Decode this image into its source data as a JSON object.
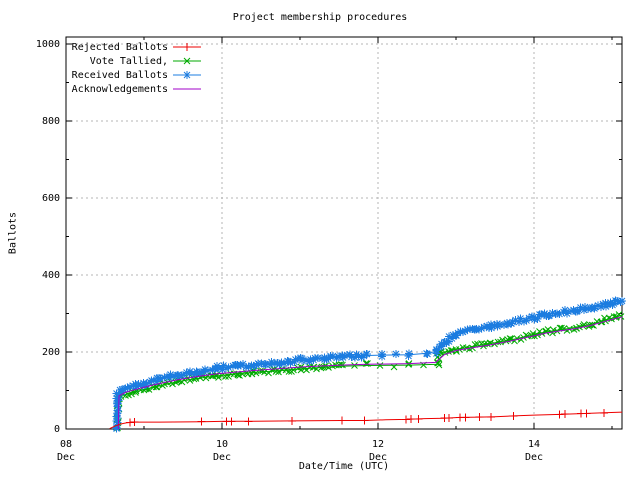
{
  "chart_data": {
    "type": "line",
    "title": "Project membership procedures",
    "xlabel": "Date/Time (UTC)",
    "ylabel": "Ballots",
    "x_unit_days_since": "Dec 08 00:00 UTC",
    "xlim_days": [
      0,
      7.13
    ],
    "ylim": [
      0,
      1017
    ],
    "grid": true,
    "legend_position": "top-left",
    "grid_color": "#b4b4b4",
    "frame_color": "#000000",
    "x_ticks": [
      {
        "day": 0,
        "top": "08",
        "bottom": "Dec"
      },
      {
        "day": 2,
        "top": "10",
        "bottom": "Dec"
      },
      {
        "day": 4,
        "top": "12",
        "bottom": "Dec"
      },
      {
        "day": 6,
        "top": "14",
        "bottom": "Dec"
      }
    ],
    "x_minor_days": [
      1,
      3,
      5,
      7
    ],
    "y_ticks": [
      0,
      200,
      400,
      600,
      800,
      1000
    ],
    "y_minor": [
      100,
      300,
      500,
      700,
      900
    ],
    "series": [
      {
        "name": "Vote Tallied,",
        "color": "#00aa00",
        "marker": "cross",
        "marker_step": 3,
        "jitter": 2.0,
        "sparse": {
          "from": 3.6,
          "to": 4.76,
          "step": 13
        },
        "points": [
          [
            0.66,
            0
          ],
          [
            0.67,
            78
          ],
          [
            0.72,
            88
          ],
          [
            0.9,
            97
          ],
          [
            1.03,
            104
          ],
          [
            1.16,
            110
          ],
          [
            1.41,
            122
          ],
          [
            1.67,
            131
          ],
          [
            1.93,
            138
          ],
          [
            2.19,
            143
          ],
          [
            2.41,
            147
          ],
          [
            2.7,
            151
          ],
          [
            3.01,
            156
          ],
          [
            3.3,
            160
          ],
          [
            3.53,
            163
          ],
          [
            3.86,
            165
          ],
          [
            4.4,
            166
          ],
          [
            4.77,
            168
          ],
          [
            4.78,
            196
          ],
          [
            5.0,
            207
          ],
          [
            5.24,
            215
          ],
          [
            5.45,
            222
          ],
          [
            5.71,
            232
          ],
          [
            6.0,
            245
          ],
          [
            6.15,
            252
          ],
          [
            6.34,
            258
          ],
          [
            6.54,
            264
          ],
          [
            6.73,
            272
          ],
          [
            6.92,
            283
          ],
          [
            7.06,
            291
          ],
          [
            7.13,
            296
          ]
        ]
      },
      {
        "name": "Received Ballots",
        "color": "#1b7ce0",
        "marker": "star",
        "marker_step": 2.5,
        "jitter": 2.0,
        "sparse": {
          "from": 3.95,
          "to": 4.74,
          "step": 17
        },
        "points": [
          [
            0.65,
            0
          ],
          [
            0.66,
            88
          ],
          [
            0.7,
            99
          ],
          [
            0.76,
            106
          ],
          [
            0.9,
            112
          ],
          [
            1.03,
            119
          ],
          [
            1.16,
            127
          ],
          [
            1.41,
            140
          ],
          [
            1.67,
            148
          ],
          [
            1.93,
            158
          ],
          [
            2.19,
            163
          ],
          [
            2.41,
            167
          ],
          [
            2.7,
            172
          ],
          [
            3.01,
            179
          ],
          [
            3.3,
            184
          ],
          [
            3.53,
            188
          ],
          [
            3.86,
            191
          ],
          [
            4.05,
            192
          ],
          [
            4.4,
            193
          ],
          [
            4.63,
            197
          ],
          [
            4.74,
            201
          ],
          [
            4.87,
            228
          ],
          [
            5.0,
            246
          ],
          [
            5.24,
            258
          ],
          [
            5.45,
            267
          ],
          [
            5.71,
            277
          ],
          [
            6.0,
            289
          ],
          [
            6.15,
            298
          ],
          [
            6.34,
            303
          ],
          [
            6.54,
            308
          ],
          [
            6.73,
            315
          ],
          [
            6.92,
            323
          ],
          [
            7.06,
            331
          ],
          [
            7.13,
            336
          ]
        ]
      },
      {
        "name": "Acknowledgements",
        "color": "#a000c8",
        "marker": "none",
        "points": [
          [
            0.67,
            0
          ],
          [
            0.68,
            86
          ],
          [
            0.76,
            95
          ],
          [
            0.9,
            103
          ],
          [
            1.03,
            110
          ],
          [
            1.16,
            116
          ],
          [
            1.41,
            127
          ],
          [
            1.67,
            136
          ],
          [
            1.93,
            143
          ],
          [
            2.19,
            148
          ],
          [
            2.41,
            152
          ],
          [
            2.7,
            156
          ],
          [
            3.01,
            161
          ],
          [
            3.3,
            164
          ],
          [
            3.53,
            166
          ],
          [
            3.86,
            168
          ],
          [
            4.4,
            170
          ],
          [
            4.74,
            173
          ],
          [
            4.85,
            193
          ],
          [
            5.0,
            204
          ],
          [
            5.24,
            212
          ],
          [
            5.45,
            219
          ],
          [
            5.71,
            229
          ],
          [
            6.0,
            242
          ],
          [
            6.15,
            249
          ],
          [
            6.34,
            255
          ],
          [
            6.54,
            261
          ],
          [
            6.73,
            269
          ],
          [
            6.92,
            280
          ],
          [
            7.06,
            288
          ],
          [
            7.13,
            291
          ]
        ]
      },
      {
        "name": "Rejected Ballots",
        "color": "#ee0000",
        "marker": "plus",
        "marker_at": [
          0.82,
          0.88,
          1.74,
          2.06,
          2.12,
          2.34,
          2.9,
          3.54,
          3.83,
          4.36,
          4.42,
          4.52,
          4.85,
          4.91,
          5.05,
          5.12,
          5.3,
          5.45,
          5.74,
          6.33,
          6.4,
          6.6,
          6.67,
          6.9
        ],
        "points": [
          [
            0.56,
            1
          ],
          [
            0.62,
            7
          ],
          [
            0.7,
            13
          ],
          [
            0.78,
            16
          ],
          [
            0.88,
            18
          ],
          [
            1.2,
            18
          ],
          [
            1.74,
            19
          ],
          [
            2.06,
            20
          ],
          [
            2.34,
            20
          ],
          [
            2.9,
            21
          ],
          [
            3.54,
            22
          ],
          [
            3.83,
            22
          ],
          [
            4.1,
            24
          ],
          [
            4.36,
            25
          ],
          [
            4.6,
            27
          ],
          [
            4.85,
            28
          ],
          [
            5.05,
            30
          ],
          [
            5.3,
            31
          ],
          [
            5.5,
            32
          ],
          [
            5.74,
            34
          ],
          [
            6.0,
            36
          ],
          [
            6.33,
            38
          ],
          [
            6.6,
            40
          ],
          [
            6.9,
            42
          ],
          [
            7.13,
            44
          ]
        ]
      }
    ],
    "legend_order": [
      "Rejected Ballots",
      "Vote Tallied,",
      "Received Ballots",
      "Acknowledgements"
    ]
  }
}
